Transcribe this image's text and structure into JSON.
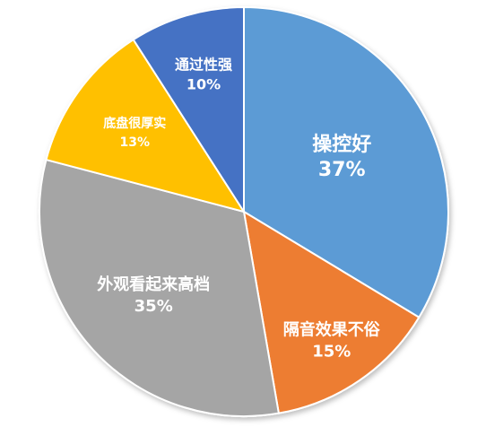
{
  "chart_data": {
    "type": "pie",
    "title": "",
    "start_angle_deg": 0,
    "direction": "clockwise",
    "slices": [
      {
        "label": "操控好",
        "value": 37,
        "value_label": "37%",
        "color": "#5b9bd5"
      },
      {
        "label": "隔音效果不俗",
        "value": 15,
        "value_label": "15%",
        "color": "#ed7d31"
      },
      {
        "label": "外观看起来高档",
        "value": 35,
        "value_label": "35%",
        "color": "#a5a5a5"
      },
      {
        "label": "底盘很厚实",
        "value": 13,
        "value_label": "13%",
        "color": "#ffc000"
      },
      {
        "label": "通过性强",
        "value": 10,
        "value_label": "10%",
        "color": "#4472c4"
      }
    ]
  }
}
